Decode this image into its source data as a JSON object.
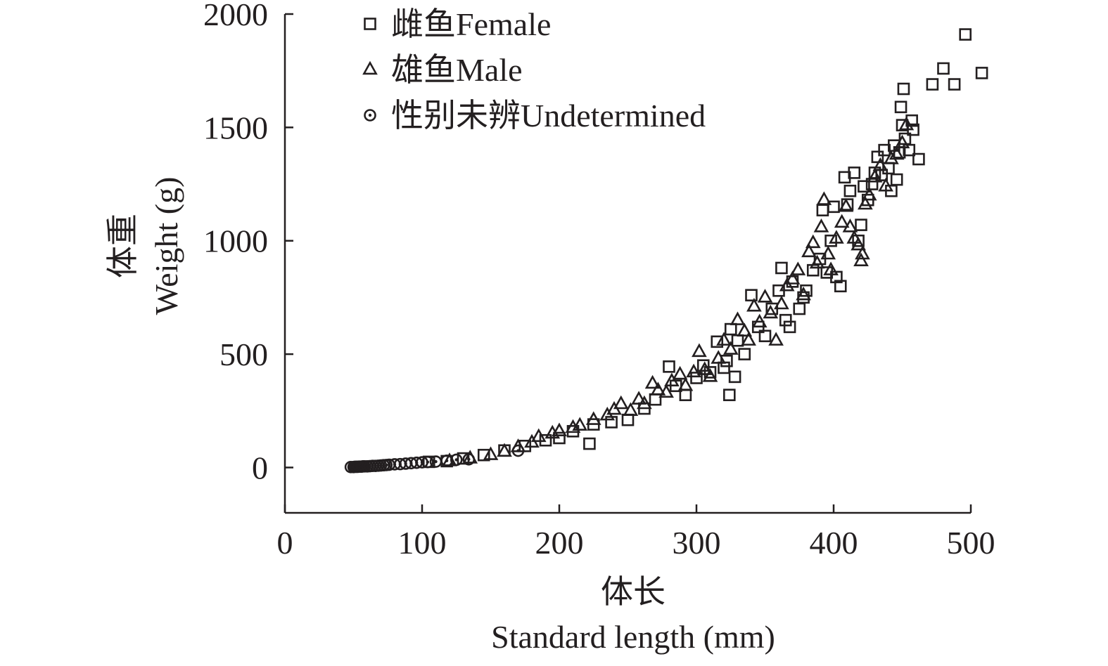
{
  "chart_data": {
    "type": "scatter",
    "title": "",
    "xlabel_cn": "体长",
    "xlabel": "Standard length (mm)",
    "ylabel_cn": "体重",
    "ylabel": "Weight (g)",
    "xlim": [
      0,
      500
    ],
    "ylim": [
      -200,
      2000
    ],
    "x_ticks": [
      0,
      100,
      200,
      300,
      400,
      500
    ],
    "y_ticks": [
      0,
      500,
      1000,
      1500,
      2000
    ],
    "x_tick_labels": [
      "0",
      "100",
      "200",
      "300",
      "400",
      "500"
    ],
    "y_tick_labels": [
      "0",
      "500",
      "1000",
      "1500",
      "2000"
    ],
    "grid": false,
    "legend_position": "top-left",
    "series": [
      {
        "name": "雌鱼Female",
        "marker": "square",
        "points": [
          [
            105,
            25
          ],
          [
            118,
            28
          ],
          [
            130,
            40
          ],
          [
            145,
            55
          ],
          [
            160,
            75
          ],
          [
            175,
            95
          ],
          [
            190,
            120
          ],
          [
            200,
            130
          ],
          [
            210,
            160
          ],
          [
            222,
            105
          ],
          [
            225,
            190
          ],
          [
            238,
            200
          ],
          [
            250,
            210
          ],
          [
            262,
            260
          ],
          [
            270,
            300
          ],
          [
            280,
            445
          ],
          [
            285,
            360
          ],
          [
            292,
            320
          ],
          [
            300,
            395
          ],
          [
            305,
            450
          ],
          [
            310,
            420
          ],
          [
            315,
            555
          ],
          [
            320,
            440
          ],
          [
            322,
            470
          ],
          [
            324,
            320
          ],
          [
            325,
            610
          ],
          [
            328,
            400
          ],
          [
            330,
            560
          ],
          [
            335,
            500
          ],
          [
            340,
            760
          ],
          [
            345,
            620
          ],
          [
            350,
            580
          ],
          [
            355,
            700
          ],
          [
            360,
            780
          ],
          [
            362,
            880
          ],
          [
            365,
            650
          ],
          [
            368,
            620
          ],
          [
            370,
            820
          ],
          [
            375,
            700
          ],
          [
            378,
            750
          ],
          [
            380,
            780
          ],
          [
            385,
            870
          ],
          [
            390,
            920
          ],
          [
            392,
            1135
          ],
          [
            395,
            860
          ],
          [
            398,
            1000
          ],
          [
            400,
            1150
          ],
          [
            402,
            840
          ],
          [
            405,
            800
          ],
          [
            408,
            1280
          ],
          [
            410,
            1160
          ],
          [
            412,
            1220
          ],
          [
            415,
            1300
          ],
          [
            418,
            1000
          ],
          [
            420,
            1070
          ],
          [
            422,
            1240
          ],
          [
            425,
            1180
          ],
          [
            428,
            1250
          ],
          [
            430,
            1300
          ],
          [
            432,
            1370
          ],
          [
            435,
            1290
          ],
          [
            437,
            1400
          ],
          [
            440,
            1320
          ],
          [
            442,
            1220
          ],
          [
            444,
            1420
          ],
          [
            446,
            1270
          ],
          [
            448,
            1390
          ],
          [
            449,
            1590
          ],
          [
            450,
            1510
          ],
          [
            451,
            1670
          ],
          [
            452,
            1450
          ],
          [
            455,
            1400
          ],
          [
            457,
            1530
          ],
          [
            458,
            1490
          ],
          [
            462,
            1360
          ],
          [
            472,
            1690
          ],
          [
            480,
            1760
          ],
          [
            488,
            1690
          ],
          [
            496,
            1910
          ],
          [
            508,
            1740
          ]
        ]
      },
      {
        "name": "雄鱼Male",
        "marker": "triangle",
        "points": [
          [
            120,
            28
          ],
          [
            135,
            40
          ],
          [
            150,
            55
          ],
          [
            160,
            70
          ],
          [
            170,
            90
          ],
          [
            180,
            110
          ],
          [
            185,
            135
          ],
          [
            195,
            150
          ],
          [
            200,
            160
          ],
          [
            210,
            175
          ],
          [
            215,
            185
          ],
          [
            225,
            210
          ],
          [
            235,
            230
          ],
          [
            240,
            255
          ],
          [
            245,
            280
          ],
          [
            252,
            250
          ],
          [
            258,
            300
          ],
          [
            262,
            280
          ],
          [
            268,
            370
          ],
          [
            272,
            340
          ],
          [
            278,
            330
          ],
          [
            282,
            380
          ],
          [
            288,
            410
          ],
          [
            292,
            360
          ],
          [
            298,
            420
          ],
          [
            302,
            510
          ],
          [
            306,
            430
          ],
          [
            310,
            400
          ],
          [
            316,
            480
          ],
          [
            320,
            560
          ],
          [
            325,
            520
          ],
          [
            330,
            650
          ],
          [
            335,
            600
          ],
          [
            338,
            560
          ],
          [
            342,
            710
          ],
          [
            346,
            640
          ],
          [
            350,
            750
          ],
          [
            354,
            680
          ],
          [
            358,
            560
          ],
          [
            362,
            720
          ],
          [
            366,
            800
          ],
          [
            370,
            830
          ],
          [
            374,
            870
          ],
          [
            378,
            760
          ],
          [
            382,
            950
          ],
          [
            385,
            990
          ],
          [
            388,
            900
          ],
          [
            391,
            1060
          ],
          [
            393,
            1180
          ],
          [
            396,
            940
          ],
          [
            398,
            870
          ],
          [
            402,
            1010
          ],
          [
            406,
            1080
          ],
          [
            409,
            1150
          ],
          [
            412,
            1060
          ],
          [
            415,
            1010
          ],
          [
            418,
            980
          ],
          [
            420,
            910
          ],
          [
            421,
            940
          ],
          [
            423,
            1160
          ],
          [
            426,
            1200
          ],
          [
            430,
            1280
          ],
          [
            434,
            1330
          ],
          [
            438,
            1240
          ],
          [
            442,
            1360
          ],
          [
            446,
            1380
          ],
          [
            450,
            1430
          ],
          [
            453,
            1510
          ]
        ]
      },
      {
        "name": "性别未辨Undetermined",
        "marker": "circle",
        "points": [
          [
            48,
            2
          ],
          [
            50,
            2
          ],
          [
            51,
            3
          ],
          [
            52,
            3
          ],
          [
            53,
            3
          ],
          [
            54,
            4
          ],
          [
            55,
            4
          ],
          [
            56,
            4
          ],
          [
            57,
            5
          ],
          [
            58,
            5
          ],
          [
            60,
            5
          ],
          [
            62,
            6
          ],
          [
            64,
            7
          ],
          [
            66,
            7
          ],
          [
            68,
            8
          ],
          [
            70,
            9
          ],
          [
            72,
            10
          ],
          [
            74,
            11
          ],
          [
            76,
            12
          ],
          [
            80,
            14
          ],
          [
            84,
            15
          ],
          [
            88,
            17
          ],
          [
            92,
            19
          ],
          [
            96,
            21
          ],
          [
            100,
            23
          ],
          [
            104,
            24
          ],
          [
            110,
            26
          ],
          [
            118,
            30
          ],
          [
            125,
            34
          ],
          [
            134,
            36
          ],
          [
            170,
            74
          ]
        ]
      }
    ]
  }
}
